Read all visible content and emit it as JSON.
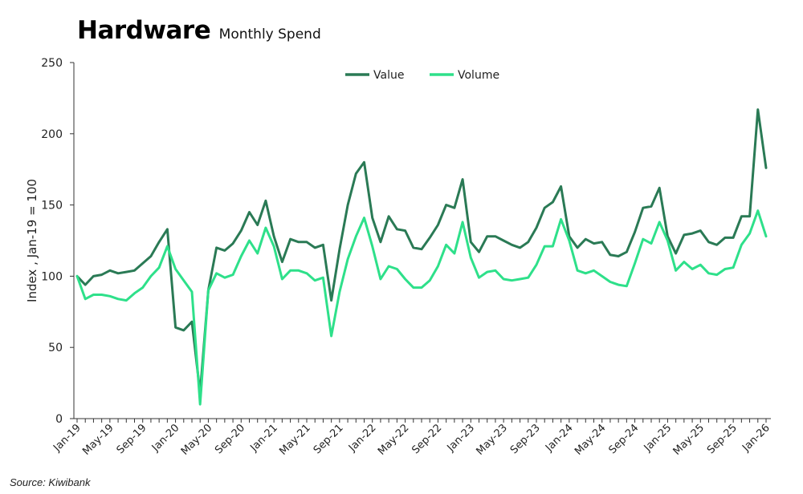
{
  "header": {
    "title": "Hardware",
    "subtitle": "Monthly Spend"
  },
  "source": "Source: Kiwibank",
  "chart_data": {
    "type": "line",
    "title": "Hardware",
    "subtitle": "Monthly Spend",
    "xlabel": "",
    "ylabel": "Index , Jan-19 = 100",
    "ylim": [
      0,
      250
    ],
    "yticks": [
      0,
      50,
      100,
      150,
      200,
      250
    ],
    "legend_position": "top-center",
    "grid": false,
    "x_tick_labels": [
      "Jan-19",
      "May-19",
      "Sep-19",
      "Jan-20",
      "May-20",
      "Sep-20",
      "Jan-21",
      "May-21",
      "Sep-21",
      "Jan-22",
      "May-22",
      "Sep-22",
      "Jan-23",
      "May-23",
      "Sep-23",
      "Jan-24",
      "May-24",
      "Sep-24",
      "Jan-25",
      "May-25",
      "Sep-25",
      "Jan-26"
    ],
    "x_tick_every_n_months": 4,
    "series": [
      {
        "name": "Value",
        "color": "#2a7a55",
        "values": [
          100,
          94,
          100,
          101,
          104,
          102,
          103,
          104,
          109,
          114,
          124,
          133,
          64,
          62,
          68,
          18,
          90,
          120,
          118,
          123,
          132,
          145,
          136,
          153,
          128,
          110,
          126,
          124,
          124,
          120,
          122,
          83,
          119,
          150,
          172,
          180,
          141,
          124,
          142,
          133,
          132,
          120,
          119,
          127,
          136,
          150,
          148,
          168,
          124,
          117,
          128,
          128,
          125,
          122,
          120,
          124,
          134,
          148,
          152,
          163,
          128,
          120,
          126,
          123,
          124,
          115,
          114,
          117,
          131,
          148,
          149,
          162,
          128,
          116,
          129,
          130,
          132,
          124,
          122,
          127,
          127,
          142,
          142,
          217,
          176
        ]
      },
      {
        "name": "Volume",
        "color": "#2ee08a",
        "values": [
          100,
          84,
          87,
          87,
          86,
          84,
          83,
          88,
          92,
          100,
          106,
          121,
          105,
          97,
          89,
          10,
          90,
          102,
          99,
          101,
          114,
          125,
          116,
          134,
          121,
          98,
          104,
          104,
          102,
          97,
          99,
          58,
          89,
          112,
          128,
          141,
          121,
          98,
          107,
          105,
          98,
          92,
          92,
          97,
          107,
          122,
          116,
          138,
          113,
          99,
          103,
          104,
          98,
          97,
          98,
          99,
          108,
          121,
          121,
          140,
          125,
          104,
          102,
          104,
          100,
          96,
          94,
          93,
          109,
          126,
          123,
          138,
          125,
          104,
          110,
          105,
          108,
          102,
          101,
          105,
          106,
          122,
          130,
          146,
          128
        ]
      }
    ]
  }
}
